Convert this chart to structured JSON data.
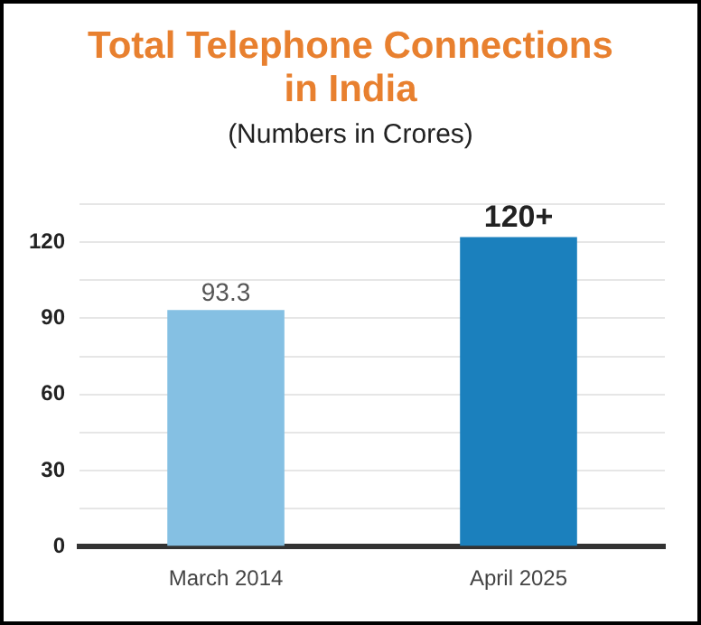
{
  "chart_data": {
    "type": "bar",
    "title": "Total Telephone Connections in India",
    "subtitle": "(Numbers in Crores)",
    "categories": [
      "March 2014",
      "April 2025"
    ],
    "values": [
      93.3,
      122
    ],
    "colors": [
      "#85c0e3",
      "#1b80bd"
    ],
    "value_labels": [
      "93.3",
      "120+"
    ],
    "ylim": [
      0,
      135
    ],
    "yticks": [
      0,
      {
        "value": 15,
        "label": null
      },
      30,
      {
        "value": 45,
        "label": null
      },
      60,
      {
        "value": 75,
        "label": null
      },
      90,
      {
        "value": 105,
        "label": null
      },
      120,
      {
        "value": 135,
        "label": null
      }
    ],
    "grid": "y"
  }
}
